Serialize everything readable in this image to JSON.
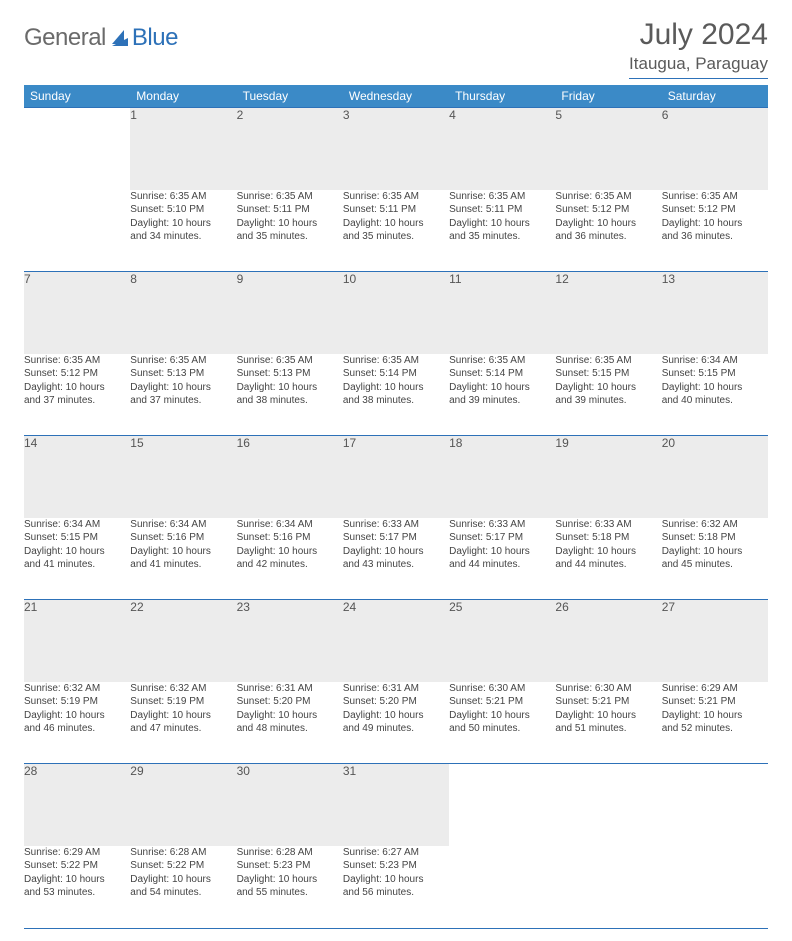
{
  "logo": {
    "text1": "General",
    "text2": "Blue"
  },
  "title": "July 2024",
  "location": "Itaugua, Paraguay",
  "colors": {
    "accent": "#2d71b8",
    "header_bg": "#3b8ac7",
    "daynum_bg": "#ececec",
    "text": "#444444",
    "title_text": "#5a5a5a"
  },
  "weekdays": [
    "Sunday",
    "Monday",
    "Tuesday",
    "Wednesday",
    "Thursday",
    "Friday",
    "Saturday"
  ],
  "weeks": [
    {
      "nums": [
        "",
        "1",
        "2",
        "3",
        "4",
        "5",
        "6"
      ],
      "cells": [
        null,
        {
          "sunrise": "Sunrise: 6:35 AM",
          "sunset": "Sunset: 5:10 PM",
          "day1": "Daylight: 10 hours",
          "day2": "and 34 minutes."
        },
        {
          "sunrise": "Sunrise: 6:35 AM",
          "sunset": "Sunset: 5:11 PM",
          "day1": "Daylight: 10 hours",
          "day2": "and 35 minutes."
        },
        {
          "sunrise": "Sunrise: 6:35 AM",
          "sunset": "Sunset: 5:11 PM",
          "day1": "Daylight: 10 hours",
          "day2": "and 35 minutes."
        },
        {
          "sunrise": "Sunrise: 6:35 AM",
          "sunset": "Sunset: 5:11 PM",
          "day1": "Daylight: 10 hours",
          "day2": "and 35 minutes."
        },
        {
          "sunrise": "Sunrise: 6:35 AM",
          "sunset": "Sunset: 5:12 PM",
          "day1": "Daylight: 10 hours",
          "day2": "and 36 minutes."
        },
        {
          "sunrise": "Sunrise: 6:35 AM",
          "sunset": "Sunset: 5:12 PM",
          "day1": "Daylight: 10 hours",
          "day2": "and 36 minutes."
        }
      ]
    },
    {
      "nums": [
        "7",
        "8",
        "9",
        "10",
        "11",
        "12",
        "13"
      ],
      "cells": [
        {
          "sunrise": "Sunrise: 6:35 AM",
          "sunset": "Sunset: 5:12 PM",
          "day1": "Daylight: 10 hours",
          "day2": "and 37 minutes."
        },
        {
          "sunrise": "Sunrise: 6:35 AM",
          "sunset": "Sunset: 5:13 PM",
          "day1": "Daylight: 10 hours",
          "day2": "and 37 minutes."
        },
        {
          "sunrise": "Sunrise: 6:35 AM",
          "sunset": "Sunset: 5:13 PM",
          "day1": "Daylight: 10 hours",
          "day2": "and 38 minutes."
        },
        {
          "sunrise": "Sunrise: 6:35 AM",
          "sunset": "Sunset: 5:14 PM",
          "day1": "Daylight: 10 hours",
          "day2": "and 38 minutes."
        },
        {
          "sunrise": "Sunrise: 6:35 AM",
          "sunset": "Sunset: 5:14 PM",
          "day1": "Daylight: 10 hours",
          "day2": "and 39 minutes."
        },
        {
          "sunrise": "Sunrise: 6:35 AM",
          "sunset": "Sunset: 5:15 PM",
          "day1": "Daylight: 10 hours",
          "day2": "and 39 minutes."
        },
        {
          "sunrise": "Sunrise: 6:34 AM",
          "sunset": "Sunset: 5:15 PM",
          "day1": "Daylight: 10 hours",
          "day2": "and 40 minutes."
        }
      ]
    },
    {
      "nums": [
        "14",
        "15",
        "16",
        "17",
        "18",
        "19",
        "20"
      ],
      "cells": [
        {
          "sunrise": "Sunrise: 6:34 AM",
          "sunset": "Sunset: 5:15 PM",
          "day1": "Daylight: 10 hours",
          "day2": "and 41 minutes."
        },
        {
          "sunrise": "Sunrise: 6:34 AM",
          "sunset": "Sunset: 5:16 PM",
          "day1": "Daylight: 10 hours",
          "day2": "and 41 minutes."
        },
        {
          "sunrise": "Sunrise: 6:34 AM",
          "sunset": "Sunset: 5:16 PM",
          "day1": "Daylight: 10 hours",
          "day2": "and 42 minutes."
        },
        {
          "sunrise": "Sunrise: 6:33 AM",
          "sunset": "Sunset: 5:17 PM",
          "day1": "Daylight: 10 hours",
          "day2": "and 43 minutes."
        },
        {
          "sunrise": "Sunrise: 6:33 AM",
          "sunset": "Sunset: 5:17 PM",
          "day1": "Daylight: 10 hours",
          "day2": "and 44 minutes."
        },
        {
          "sunrise": "Sunrise: 6:33 AM",
          "sunset": "Sunset: 5:18 PM",
          "day1": "Daylight: 10 hours",
          "day2": "and 44 minutes."
        },
        {
          "sunrise": "Sunrise: 6:32 AM",
          "sunset": "Sunset: 5:18 PM",
          "day1": "Daylight: 10 hours",
          "day2": "and 45 minutes."
        }
      ]
    },
    {
      "nums": [
        "21",
        "22",
        "23",
        "24",
        "25",
        "26",
        "27"
      ],
      "cells": [
        {
          "sunrise": "Sunrise: 6:32 AM",
          "sunset": "Sunset: 5:19 PM",
          "day1": "Daylight: 10 hours",
          "day2": "and 46 minutes."
        },
        {
          "sunrise": "Sunrise: 6:32 AM",
          "sunset": "Sunset: 5:19 PM",
          "day1": "Daylight: 10 hours",
          "day2": "and 47 minutes."
        },
        {
          "sunrise": "Sunrise: 6:31 AM",
          "sunset": "Sunset: 5:20 PM",
          "day1": "Daylight: 10 hours",
          "day2": "and 48 minutes."
        },
        {
          "sunrise": "Sunrise: 6:31 AM",
          "sunset": "Sunset: 5:20 PM",
          "day1": "Daylight: 10 hours",
          "day2": "and 49 minutes."
        },
        {
          "sunrise": "Sunrise: 6:30 AM",
          "sunset": "Sunset: 5:21 PM",
          "day1": "Daylight: 10 hours",
          "day2": "and 50 minutes."
        },
        {
          "sunrise": "Sunrise: 6:30 AM",
          "sunset": "Sunset: 5:21 PM",
          "day1": "Daylight: 10 hours",
          "day2": "and 51 minutes."
        },
        {
          "sunrise": "Sunrise: 6:29 AM",
          "sunset": "Sunset: 5:21 PM",
          "day1": "Daylight: 10 hours",
          "day2": "and 52 minutes."
        }
      ]
    },
    {
      "nums": [
        "28",
        "29",
        "30",
        "31",
        "",
        "",
        ""
      ],
      "cells": [
        {
          "sunrise": "Sunrise: 6:29 AM",
          "sunset": "Sunset: 5:22 PM",
          "day1": "Daylight: 10 hours",
          "day2": "and 53 minutes."
        },
        {
          "sunrise": "Sunrise: 6:28 AM",
          "sunset": "Sunset: 5:22 PM",
          "day1": "Daylight: 10 hours",
          "day2": "and 54 minutes."
        },
        {
          "sunrise": "Sunrise: 6:28 AM",
          "sunset": "Sunset: 5:23 PM",
          "day1": "Daylight: 10 hours",
          "day2": "and 55 minutes."
        },
        {
          "sunrise": "Sunrise: 6:27 AM",
          "sunset": "Sunset: 5:23 PM",
          "day1": "Daylight: 10 hours",
          "day2": "and 56 minutes."
        },
        null,
        null,
        null
      ]
    }
  ]
}
